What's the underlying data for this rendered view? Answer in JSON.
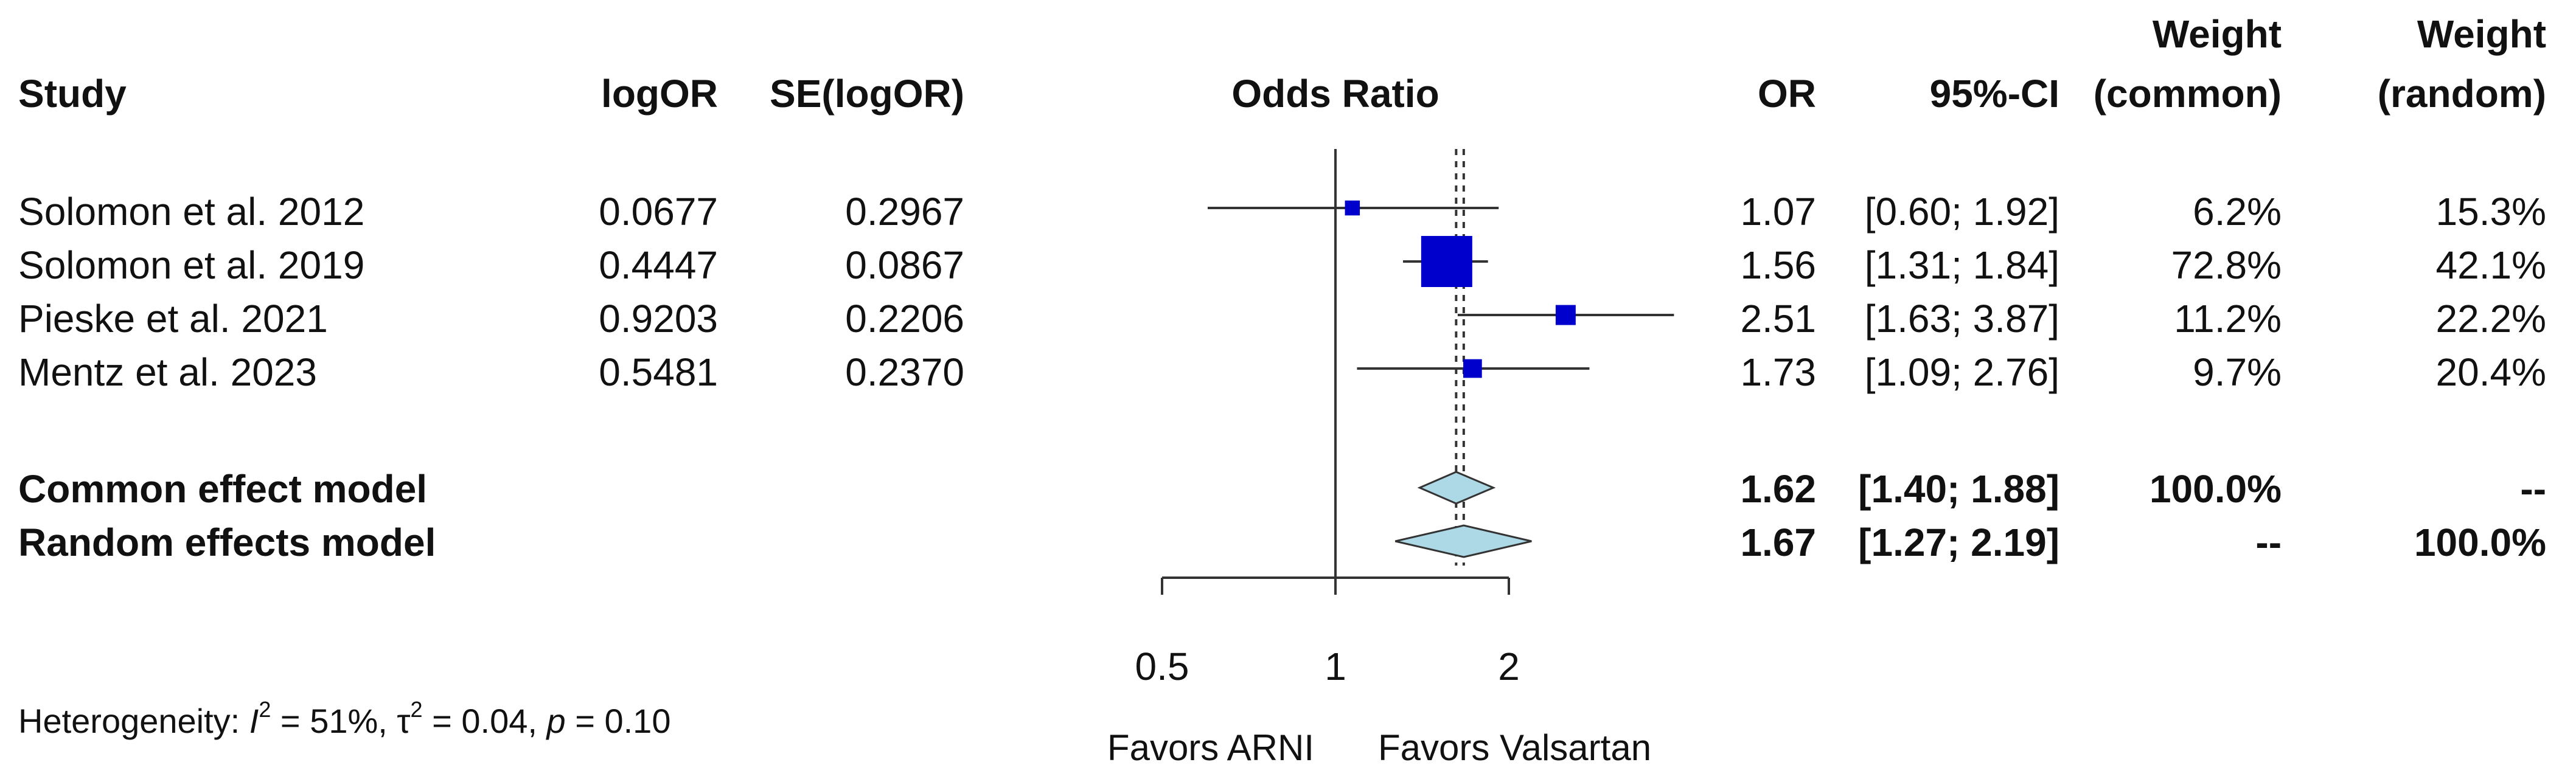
{
  "chart_data": {
    "type": "forest",
    "measure": "Odds Ratio",
    "columns": {
      "study": "Study",
      "logor": "logOR",
      "se": "SE(logOR)",
      "plot": "Odds Ratio",
      "or": "OR",
      "ci": "95%-CI",
      "weight_common": [
        "Weight",
        "(common)"
      ],
      "weight_random": [
        "Weight",
        "(random)"
      ]
    },
    "studies": [
      {
        "name": "Solomon et al. 2012",
        "logor": "0.0677",
        "se": "0.2967",
        "or": 1.07,
        "lower": 0.6,
        "upper": 1.92,
        "or_text": "1.07",
        "ci_text": "[0.60; 1.92]",
        "w_common": "6.2%",
        "w_random": "15.3%",
        "w_common_value": 6.2
      },
      {
        "name": "Solomon et al. 2019",
        "logor": "0.4447",
        "se": "0.0867",
        "or": 1.56,
        "lower": 1.31,
        "upper": 1.84,
        "or_text": "1.56",
        "ci_text": "[1.31; 1.84]",
        "w_common": "72.8%",
        "w_random": "42.1%",
        "w_common_value": 72.8
      },
      {
        "name": "Pieske et al. 2021",
        "logor": "0.9203",
        "se": "0.2206",
        "or": 2.51,
        "lower": 1.63,
        "upper": 3.87,
        "or_text": "2.51",
        "ci_text": "[1.63; 3.87]",
        "w_common": "11.2%",
        "w_random": "22.2%",
        "w_common_value": 11.2
      },
      {
        "name": "Mentz et al. 2023",
        "logor": "0.5481",
        "se": "0.2370",
        "or": 1.73,
        "lower": 1.09,
        "upper": 2.76,
        "or_text": "1.73",
        "ci_text": "[1.09; 2.76]",
        "w_common": "9.7%",
        "w_random": "20.4%",
        "w_common_value": 9.7
      }
    ],
    "pooled": [
      {
        "name": "Common effect model",
        "or": 1.62,
        "lower": 1.4,
        "upper": 1.88,
        "or_text": "1.62",
        "ci_text": "[1.40; 1.88]",
        "w_common": "100.0%",
        "w_random": "--"
      },
      {
        "name": "Random effects model",
        "or": 1.67,
        "lower": 1.27,
        "upper": 2.19,
        "or_text": "1.67",
        "ci_text": "[1.27; 2.19]",
        "w_common": "--",
        "w_random": "100.0%"
      }
    ],
    "x_axis": {
      "scale": "log",
      "ticks": [
        0.5,
        1,
        2
      ],
      "tick_labels": [
        "0.5",
        "1",
        "2"
      ],
      "range": [
        0.5,
        2
      ],
      "reference_line": 1,
      "left_label": "Favors ARNI",
      "right_label": "Favors Valsartan"
    },
    "heterogeneity": {
      "prefix": "Heterogeneity: ",
      "i2_symbol": "I",
      "i2_exp": "2",
      "i2_value": " = 51%, ",
      "tau2_symbol": "τ",
      "tau2_exp": "2",
      "tau2_value": " = 0.04, ",
      "p_symbol": "p",
      "p_value": " = 0.10"
    },
    "colors": {
      "study_square": "#0000cc",
      "diamond_fill": "#add8e6",
      "diamond_stroke": "#333333",
      "line": "#333333"
    }
  }
}
